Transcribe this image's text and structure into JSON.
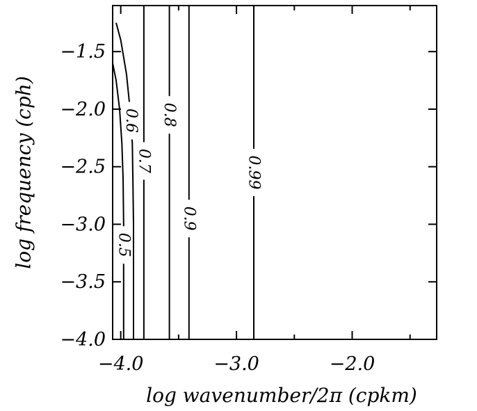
{
  "chart_data": {
    "type": "contour",
    "title": "",
    "xlabel": "log wavenumber/2π (cpkm)",
    "ylabel": "log frequency (cph)",
    "xlim": [
      -4.07,
      -1.27
    ],
    "ylim": [
      -4.0,
      -1.1
    ],
    "x_ticks": [
      -4.0,
      -3.0,
      -2.0
    ],
    "x_tick_labels": [
      "−4.0",
      "−3.0",
      "−2.0"
    ],
    "x_minor_ticks": [
      -3.5,
      -2.5,
      -1.5
    ],
    "y_ticks": [
      -4.0,
      -3.5,
      -3.0,
      -2.5,
      -2.0,
      -1.5
    ],
    "y_tick_labels": [
      "−4.0",
      "−3.5",
      "−3.0",
      "−2.5",
      "−2.0",
      "−1.5"
    ],
    "grid": false,
    "contours": [
      {
        "level": 0.5,
        "label": "0.5",
        "points": [
          [
            -3.975,
            -4.0
          ],
          [
            -3.975,
            -3.0
          ],
          [
            -3.98,
            -2.6
          ],
          [
            -3.99,
            -2.3
          ],
          [
            -4.01,
            -2.0
          ],
          [
            -4.04,
            -1.75
          ],
          [
            -4.07,
            -1.6
          ]
        ],
        "label_at": [
          -3.975,
          -3.18
        ]
      },
      {
        "level": 0.6,
        "label": "0.6",
        "points": [
          [
            -3.89,
            -4.0
          ],
          [
            -3.89,
            -3.0
          ],
          [
            -3.895,
            -2.6
          ],
          [
            -3.9,
            -2.3
          ],
          [
            -3.92,
            -2.0
          ],
          [
            -3.95,
            -1.7
          ],
          [
            -4.0,
            -1.4
          ],
          [
            -4.04,
            -1.25
          ]
        ],
        "label_at": [
          -3.91,
          -2.1
        ]
      },
      {
        "level": 0.7,
        "label": "0.7",
        "points": [
          [
            -3.8,
            -4.0
          ],
          [
            -3.8,
            -1.1
          ]
        ],
        "label_at": [
          -3.8,
          -2.45
        ]
      },
      {
        "level": 0.8,
        "label": "0.8",
        "points": [
          [
            -3.58,
            -4.0
          ],
          [
            -3.58,
            -1.1
          ]
        ],
        "label_at": [
          -3.58,
          -2.05
        ]
      },
      {
        "level": 0.9,
        "label": "0.9",
        "points": [
          [
            -3.41,
            -4.0
          ],
          [
            -3.41,
            -1.1
          ]
        ],
        "label_at": [
          -3.41,
          -2.95
        ]
      },
      {
        "level": 0.99,
        "label": "0.99",
        "points": [
          [
            -2.85,
            -4.0
          ],
          [
            -2.85,
            -1.1
          ]
        ],
        "label_at": [
          -2.85,
          -2.55
        ]
      }
    ]
  }
}
